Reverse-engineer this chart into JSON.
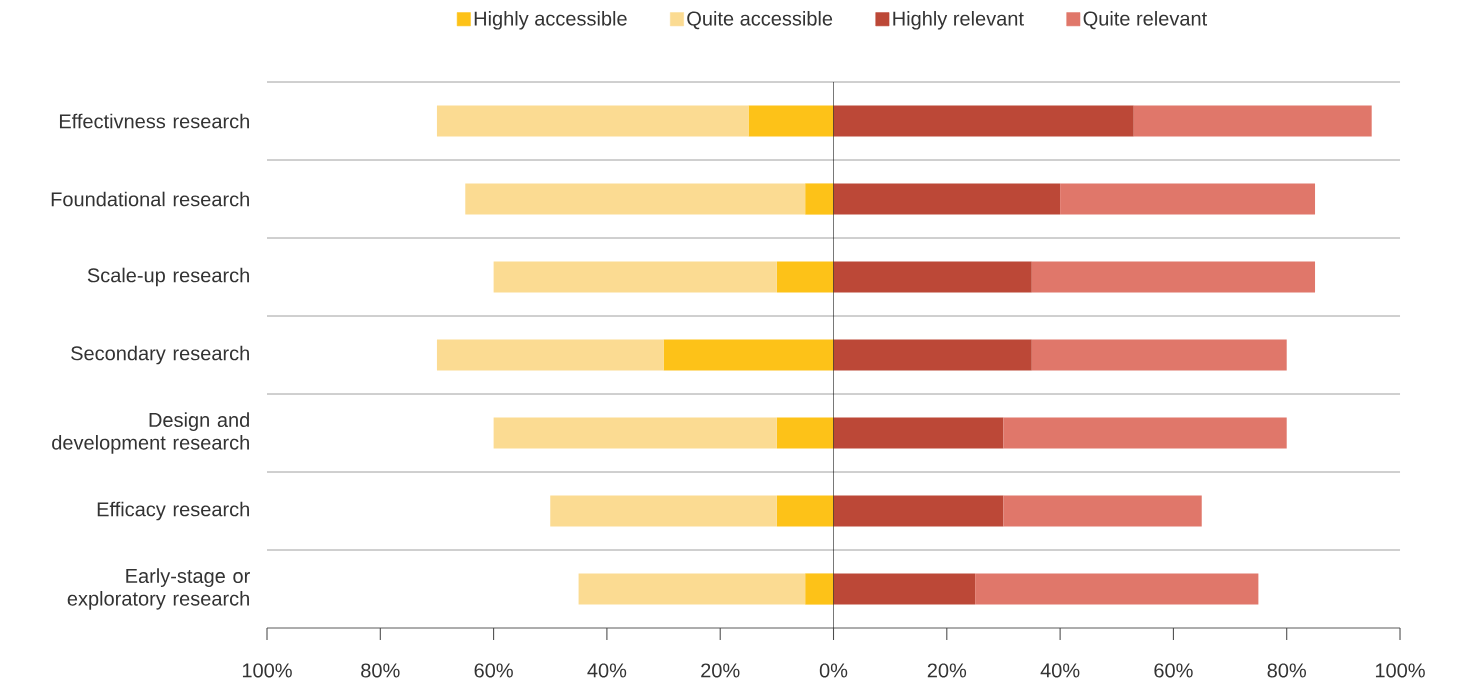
{
  "chart_data": {
    "type": "bar",
    "orientation": "horizontal",
    "stacked": true,
    "categories": [
      "Effectivness research",
      "Foundational research",
      "Scale-up research",
      "Secondary research",
      "Design and development research",
      "Efficacy research",
      "Early-stage or exploratory research"
    ],
    "series": [
      {
        "name": "Highly accessible",
        "color": "#fdc218",
        "values": [
          -15,
          -5,
          -10,
          -30,
          -10,
          -10,
          -5
        ]
      },
      {
        "name": "Quite accessible",
        "color": "#fbdb92",
        "values": [
          -55,
          -60,
          -50,
          -40,
          -50,
          -40,
          -40
        ]
      },
      {
        "name": "Highly relevant",
        "color": "#bc4837",
        "values": [
          53,
          40,
          35,
          35,
          30,
          30,
          25
        ]
      },
      {
        "name": "Quite relevant",
        "color": "#e0776a",
        "values": [
          42,
          45,
          50,
          45,
          50,
          35,
          50
        ]
      }
    ],
    "xlim": [
      -100,
      100
    ],
    "xticks": [
      {
        "value": -100,
        "label": "100%"
      },
      {
        "value": -80,
        "label": "80%"
      },
      {
        "value": -60,
        "label": "60%"
      },
      {
        "value": -40,
        "label": "40%"
      },
      {
        "value": -20,
        "label": "20%"
      },
      {
        "value": 0,
        "label": "0%"
      },
      {
        "value": 20,
        "label": "20%"
      },
      {
        "value": 40,
        "label": "40%"
      },
      {
        "value": 60,
        "label": "60%"
      },
      {
        "value": 80,
        "label": "80%"
      },
      {
        "value": 100,
        "label": "100%"
      }
    ],
    "grid": "y",
    "legend": "top",
    "ref_lines": [
      {
        "axis": "x",
        "value": 0,
        "color": "#000000"
      }
    ]
  }
}
